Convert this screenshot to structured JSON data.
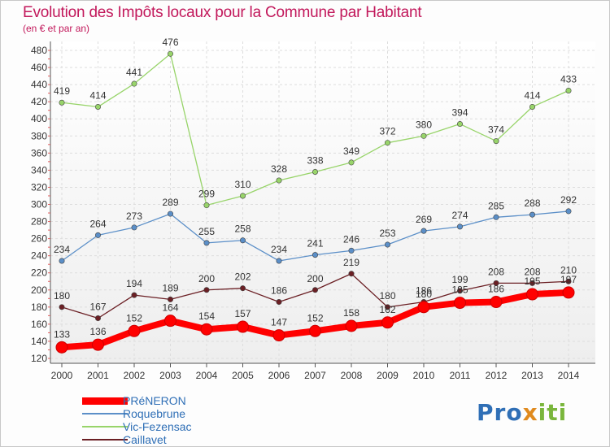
{
  "chart_data": {
    "type": "line",
    "title": "Evolution des Impôts locaux pour la Commune par Habitant",
    "subtitle": "(en € et par an)",
    "x": [
      "2000",
      "2001",
      "2002",
      "2003",
      "2004",
      "2005",
      "2006",
      "2007",
      "2008",
      "2009",
      "2010",
      "2011",
      "2012",
      "2013",
      "2014"
    ],
    "ylim": [
      120,
      480
    ],
    "yticks": [
      120,
      140,
      160,
      180,
      200,
      220,
      240,
      260,
      280,
      300,
      320,
      340,
      360,
      380,
      400,
      420,
      440,
      460,
      480
    ],
    "grid": true,
    "legend_position": "bottom-left",
    "series": [
      {
        "name": "PRéNERON",
        "color": "#ff0000",
        "values": [
          133,
          136,
          152,
          164,
          154,
          157,
          147,
          152,
          158,
          162,
          180,
          185,
          186,
          195,
          197
        ]
      },
      {
        "name": "Roquebrune",
        "color": "#5b8fc8",
        "values": [
          234,
          264,
          273,
          289,
          255,
          258,
          234,
          241,
          246,
          253,
          269,
          274,
          285,
          288,
          292
        ]
      },
      {
        "name": "Vic-Fezensac",
        "color": "#98d46a",
        "values": [
          419,
          414,
          441,
          476,
          299,
          310,
          328,
          338,
          349,
          372,
          380,
          394,
          374,
          414,
          433
        ]
      },
      {
        "name": "Caillavet",
        "color": "#6b1f24",
        "values": [
          180,
          167,
          194,
          189,
          200,
          202,
          186,
          200,
          219,
          180,
          186,
          199,
          208,
          208,
          210
        ]
      }
    ]
  },
  "brand": {
    "p1": "Pro",
    "p2": "x",
    "p3": "iti"
  }
}
